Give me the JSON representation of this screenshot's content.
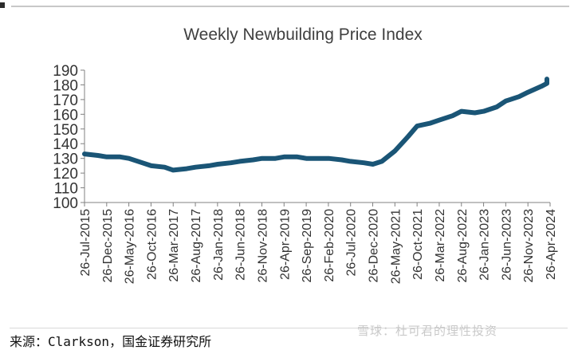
{
  "page": {
    "source": "来源：Clarkson，国金证券研究所",
    "watermark": "雪球：杜可君的理性投资"
  },
  "colors": {
    "line": "#1a5576",
    "axis": "#808080",
    "text": "#333333"
  },
  "chart_data": {
    "type": "line",
    "title": "Weekly Newbuilding Price Index",
    "xlabel": "",
    "ylabel": "",
    "ylim": [
      100,
      190
    ],
    "yticks": [
      100,
      110,
      120,
      130,
      140,
      150,
      160,
      170,
      180,
      190
    ],
    "grid": false,
    "legend": "none",
    "xticks": [
      "26-Jul-2015",
      "26-Dec-2015",
      "26-May-2016",
      "26-Oct-2016",
      "26-Mar-2017",
      "26-Aug-2017",
      "26-Jan-2018",
      "26-Jun-2018",
      "26-Nov-2018",
      "26-Apr-2019",
      "26-Sep-2019",
      "26-Feb-2020",
      "26-Jul-2020",
      "26-Dec-2020",
      "26-May-2021",
      "26-Oct-2021",
      "26-Mar-2022",
      "26-Aug-2022",
      "26-Jan-2023",
      "26-Jun-2023",
      "26-Nov-2023",
      "26-Apr-2024"
    ],
    "series": [
      {
        "x": [
          "2015-07-26",
          "2015-10-26",
          "2015-12-26",
          "2016-03-26",
          "2016-05-26",
          "2016-08-26",
          "2016-10-26",
          "2017-01-26",
          "2017-03-26",
          "2017-06-26",
          "2017-08-26",
          "2017-11-26",
          "2018-01-26",
          "2018-04-26",
          "2018-06-26",
          "2018-09-26",
          "2018-11-26",
          "2019-02-26",
          "2019-04-26",
          "2019-07-26",
          "2019-09-26",
          "2019-12-26",
          "2020-02-26",
          "2020-05-26",
          "2020-07-26",
          "2020-10-26",
          "2020-12-26",
          "2021-02-26",
          "2021-05-26",
          "2021-08-26",
          "2021-10-26",
          "2022-01-26",
          "2022-03-26",
          "2022-06-26",
          "2022-08-26",
          "2022-11-26",
          "2023-01-26",
          "2023-04-26",
          "2023-06-26",
          "2023-09-26",
          "2023-11-26",
          "2024-02-26",
          "2024-04-26",
          "2024-06-26"
        ],
        "values": [
          133,
          132,
          131,
          131,
          130,
          127,
          125,
          124,
          122,
          123,
          124,
          125,
          126,
          127,
          128,
          129,
          130,
          130,
          131,
          131,
          130,
          130,
          130,
          129,
          128,
          127,
          126,
          128,
          135,
          145,
          152,
          154,
          156,
          159,
          162,
          161,
          162,
          165,
          169,
          172,
          175,
          179,
          181,
          184
        ]
      }
    ]
  }
}
